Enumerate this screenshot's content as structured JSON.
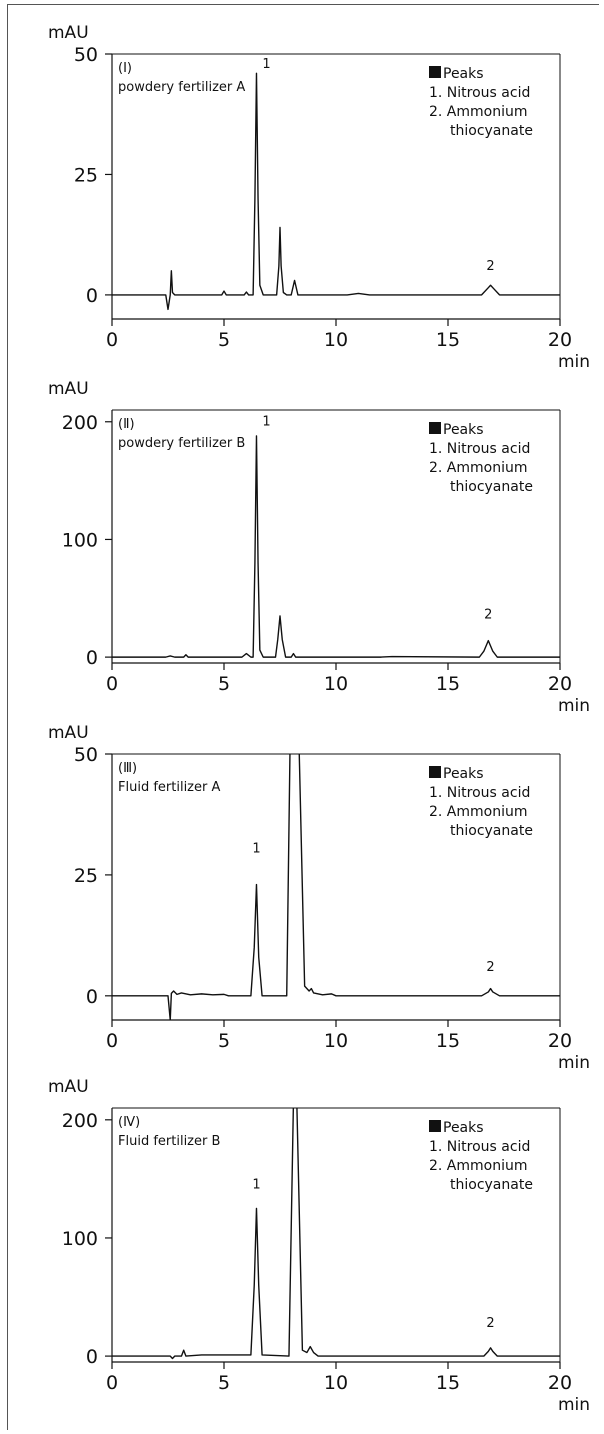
{
  "chart_data": [
    {
      "type": "line",
      "panel_label": "(Ⅰ)",
      "sample": "powdery fertilizer A",
      "ylabel": "mAU",
      "xlabel": "min",
      "xlim": [
        0,
        20
      ],
      "ylim": [
        -5,
        50
      ],
      "xticks": [
        0,
        5,
        10,
        15,
        20
      ],
      "yticks": [
        0,
        25,
        50
      ],
      "legend": {
        "title": "Peaks",
        "items": [
          "1. Nitrous acid",
          "2. Ammonium",
          "thiocyanate"
        ],
        "position": "top-right"
      },
      "peak_labels": [
        {
          "text": "1",
          "x": 6.9,
          "y": 46
        },
        {
          "text": "2",
          "x": 16.9,
          "y": 3.5
        }
      ],
      "series": [
        {
          "x": [
            0,
            2.4,
            2.5,
            2.6,
            2.65,
            2.7,
            2.8,
            3.5,
            4.9,
            5.0,
            5.1,
            5.9,
            6.0,
            6.1,
            6.3,
            6.38,
            6.45,
            6.52,
            6.6,
            6.75,
            7.0,
            7.35,
            7.45,
            7.5,
            7.55,
            7.65,
            7.8,
            8.0,
            8.1,
            8.15,
            8.2,
            8.3,
            8.5,
            10.5,
            11.0,
            11.5,
            16.5,
            16.8,
            16.9,
            17.0,
            17.3,
            20
          ],
          "values": [
            0,
            0,
            -3,
            0,
            5,
            0.5,
            0,
            0,
            0,
            0.8,
            0,
            0,
            0.6,
            0,
            0,
            20,
            46,
            20,
            2,
            0,
            0,
            0,
            6,
            14,
            6,
            0.5,
            0,
            0,
            2,
            3,
            2,
            0,
            0,
            0,
            0.3,
            0,
            0,
            1.5,
            2,
            1.5,
            0,
            0
          ]
        }
      ]
    },
    {
      "type": "line",
      "panel_label": "(Ⅱ)",
      "sample": "powdery fertilizer B",
      "ylabel": "mAU",
      "xlabel": "min",
      "xlim": [
        0,
        20
      ],
      "ylim": [
        -5,
        210
      ],
      "xticks": [
        0,
        5,
        10,
        15,
        20
      ],
      "yticks": [
        0,
        100,
        200
      ],
      "legend": {
        "title": "Peaks",
        "items": [
          "1. Nitrous acid",
          "2. Ammonium",
          "thiocyanate"
        ],
        "position": "top-right"
      },
      "peak_labels": [
        {
          "text": "1",
          "x": 6.9,
          "y": 190
        },
        {
          "text": "2",
          "x": 16.8,
          "y": 26
        }
      ],
      "series": [
        {
          "x": [
            0,
            2.4,
            2.6,
            2.8,
            3.2,
            3.3,
            3.4,
            5.8,
            6.0,
            6.2,
            6.3,
            6.38,
            6.45,
            6.52,
            6.6,
            6.75,
            7.3,
            7.4,
            7.5,
            7.6,
            7.75,
            8.0,
            8.1,
            8.2,
            8.4,
            12.0,
            12.5,
            16.4,
            16.6,
            16.8,
            17.0,
            17.2,
            20
          ],
          "values": [
            0,
            0,
            1,
            0,
            0,
            2,
            0,
            0,
            3,
            0,
            0,
            80,
            188,
            80,
            6,
            0,
            0,
            15,
            35,
            15,
            0,
            0,
            3,
            0,
            0,
            0,
            0.5,
            0,
            5,
            14,
            5,
            0,
            0
          ]
        }
      ]
    },
    {
      "type": "line",
      "panel_label": "(Ⅲ)",
      "sample": "Fluid fertilizer A",
      "ylabel": "mAU",
      "xlabel": "min",
      "xlim": [
        0,
        20
      ],
      "ylim": [
        -5,
        50
      ],
      "xticks": [
        0,
        5,
        10,
        15,
        20
      ],
      "yticks": [
        0,
        25,
        50
      ],
      "legend": {
        "title": "Peaks",
        "items": [
          "1. Nitrous acid",
          "2. Ammonium",
          "thiocyanate"
        ],
        "position": "top-right"
      },
      "peak_labels": [
        {
          "text": "1",
          "x": 6.45,
          "y": 28
        },
        {
          "text": "2",
          "x": 16.9,
          "y": 3.5
        }
      ],
      "series": [
        {
          "x": [
            0,
            2.5,
            2.6,
            2.65,
            2.75,
            2.9,
            3.1,
            3.5,
            4.0,
            4.5,
            5.0,
            5.2,
            6.2,
            6.35,
            6.45,
            6.55,
            6.7,
            7.8,
            7.95,
            8.05,
            8.25,
            8.35,
            8.6,
            8.8,
            8.9,
            9.0,
            9.4,
            9.8,
            10.0,
            16.5,
            16.8,
            16.9,
            17.0,
            17.3,
            20
          ],
          "values": [
            0,
            0,
            -5,
            0.5,
            1,
            0.3,
            0.6,
            0.2,
            0.4,
            0.2,
            0.3,
            0,
            0,
            10,
            23,
            8,
            0,
            0,
            52,
            52,
            52,
            52,
            2,
            1,
            1.5,
            0.6,
            0.2,
            0.4,
            0,
            0,
            0.8,
            1.5,
            0.8,
            0,
            0
          ]
        }
      ]
    },
    {
      "type": "line",
      "panel_label": "(Ⅳ)",
      "sample": "Fluid fertilizer B",
      "ylabel": "mAU",
      "xlabel": "min",
      "xlim": [
        0,
        20
      ],
      "ylim": [
        -5,
        210
      ],
      "xticks": [
        0,
        5,
        10,
        15,
        20
      ],
      "yticks": [
        0,
        100,
        200
      ],
      "legend": {
        "title": "Peaks",
        "items": [
          "1. Nitrous acid",
          "2. Ammonium",
          "thiocyanate"
        ],
        "position": "top-right"
      },
      "peak_labels": [
        {
          "text": "1",
          "x": 6.45,
          "y": 135
        },
        {
          "text": "2",
          "x": 16.9,
          "y": 18
        }
      ],
      "series": [
        {
          "x": [
            0,
            2.6,
            2.7,
            2.8,
            3.1,
            3.2,
            3.3,
            4.0,
            5.0,
            6.2,
            6.35,
            6.45,
            6.55,
            6.7,
            7.9,
            8.1,
            8.25,
            8.5,
            8.7,
            8.85,
            9.0,
            9.2,
            16.6,
            16.8,
            16.9,
            17.0,
            17.2,
            20
          ],
          "values": [
            0,
            0,
            -2,
            0,
            0,
            5,
            0,
            1,
            1,
            1,
            60,
            125,
            60,
            1,
            0,
            215,
            215,
            5,
            3,
            8,
            3,
            0,
            0,
            4,
            7,
            4,
            0,
            0
          ]
        }
      ]
    }
  ]
}
